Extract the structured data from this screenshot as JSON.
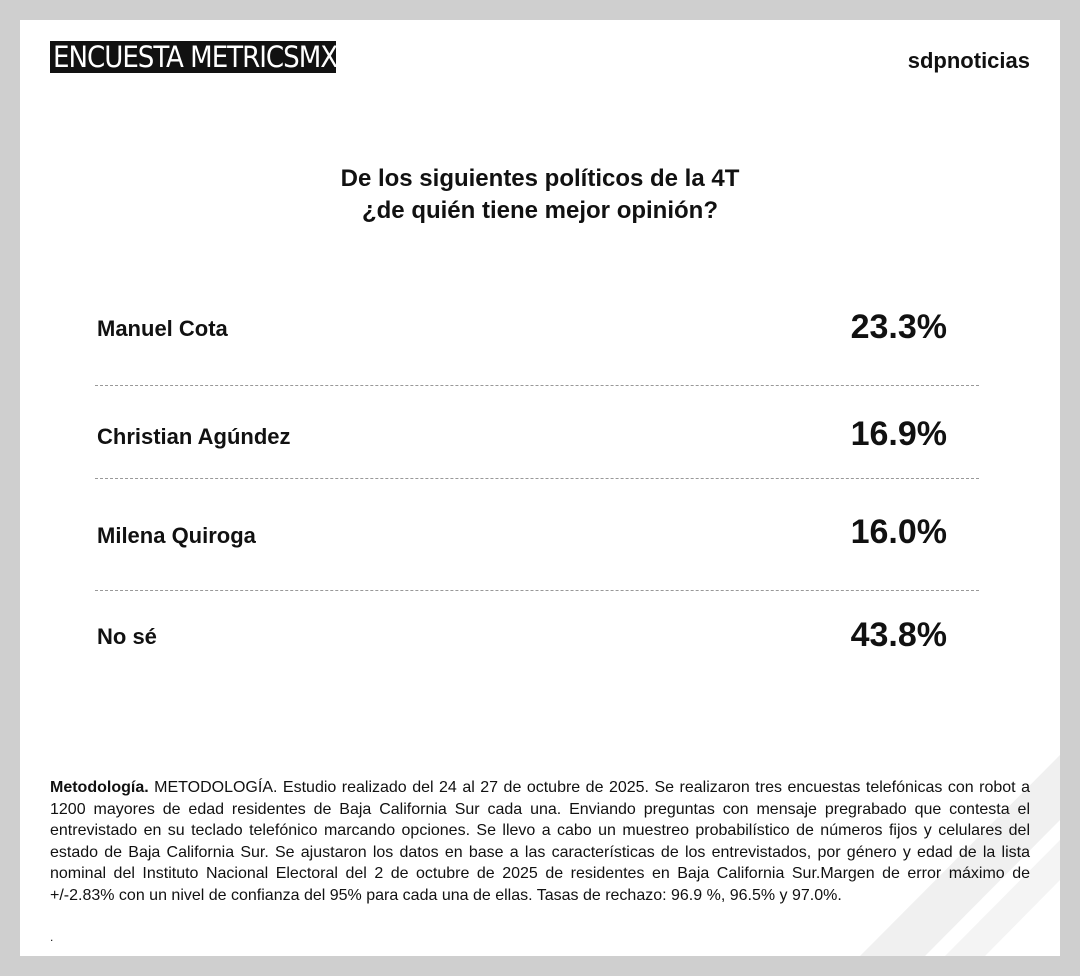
{
  "header": {
    "badge": "ENCUESTA METRICSMX",
    "brand": "sdpnoticias"
  },
  "question": {
    "line1": "De los siguientes políticos de la 4T",
    "line2": "¿de quién tiene mejor opinión?"
  },
  "table": {
    "rows": [
      [
        "Manuel Cota",
        "23.3%"
      ],
      [
        "Christian Agúndez",
        "16.9%"
      ],
      [
        "Milena Quiroga",
        "16.0%"
      ],
      [
        "No sé",
        "43.8%"
      ]
    ]
  },
  "methodology": {
    "label": "Metodología.",
    "text": "METODOLOGÍA. Estudio realizado del 24 al 27 de octubre de 2025. Se realizaron tres encuestas telefónicas con robot a 1200 mayores de edad residentes de Baja California Sur cada una. Enviando preguntas con mensaje pregrabado que contesta el entrevistado en su teclado telefónico marcando opciones. Se llevo a cabo un muestreo probabilístico de números fijos y celulares del estado de Baja California Sur. Se ajustaron los datos en base a las características de los entrevistados, por género y edad de la lista nominal del Instituto Nacional Electoral del 2 de octubre de 2025 de residentes en Baja California Sur.Margen de error máximo de +/-2.83% con un nivel de confianza del 95% para cada una de ellas. Tasas de rechazo: 96.9 %, 96.5% y 97.0%.",
    "end": "."
  }
}
